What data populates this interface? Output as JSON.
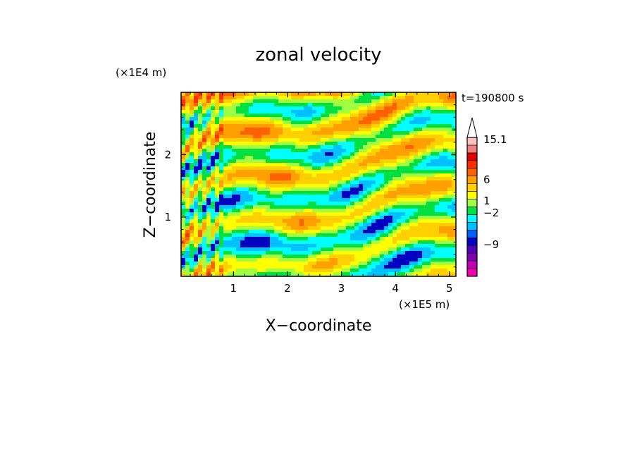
{
  "chart_data": {
    "type": "heatmap",
    "title": "zonal velocity",
    "time_label": "t=190800 s",
    "xlabel": "X−coordinate",
    "ylabel": "Z−coordinate",
    "x_scale_label": "(×1E5 m)",
    "y_scale_label": "(×1E4 m)",
    "xlim": [
      0.03,
      5.12
    ],
    "ylim": [
      0.05,
      3.0
    ],
    "x_ticks": [
      1,
      2,
      3,
      4,
      5
    ],
    "y_ticks": [
      1,
      2
    ],
    "x_tick_labels": [
      "1",
      "2",
      "3",
      "4",
      "5"
    ],
    "y_tick_labels": [
      "1",
      "2"
    ],
    "colorbar": {
      "labels": [
        {
          "text": "15.1",
          "value": 15.1
        },
        {
          "text": "6",
          "value": 6
        },
        {
          "text": "1",
          "value": 1
        },
        {
          "text": "−2",
          "value": -2
        },
        {
          "text": "−9",
          "value": -9
        }
      ],
      "levels": [
        {
          "color": "#ee00b0"
        },
        {
          "color": "#c000b0"
        },
        {
          "color": "#8000b0"
        },
        {
          "color": "#5000b8"
        },
        {
          "color": "#0000c0"
        },
        {
          "color": "#0060ff"
        },
        {
          "color": "#00c0ff"
        },
        {
          "color": "#00ffff"
        },
        {
          "color": "#00e040"
        },
        {
          "color": "#a0ff40"
        },
        {
          "color": "#ffff00"
        },
        {
          "color": "#ffd000"
        },
        {
          "color": "#ffa000"
        },
        {
          "color": "#ff6000"
        },
        {
          "color": "#ff3000"
        },
        {
          "color": "#e00000"
        },
        {
          "color": "#f08080"
        },
        {
          "color": "#ffc0c0"
        },
        {
          "color": "#ffffff"
        }
      ]
    },
    "field_colors": [
      "#0000c0",
      "#00c0ff",
      "#00ffff",
      "#00e040",
      "#a0ff40",
      "#ffff00",
      "#ffd000",
      "#ffa000",
      "#ff6000",
      "#ff3000"
    ]
  }
}
